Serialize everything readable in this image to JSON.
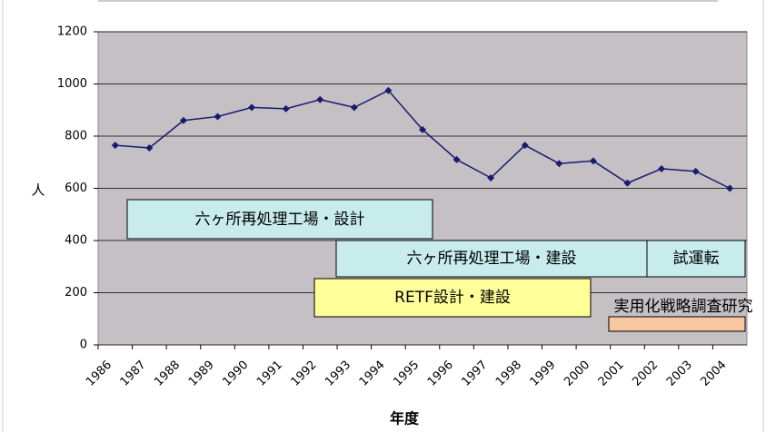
{
  "chart_data": {
    "type": "line",
    "ylabel": "人",
    "xlabel": "年度",
    "categories": [
      "1986",
      "1987",
      "1988",
      "1989",
      "1990",
      "1991",
      "1992",
      "1993",
      "1994",
      "1995",
      "1996",
      "1997",
      "1998",
      "1999",
      "2000",
      "2001",
      "2002",
      "2003",
      "2004"
    ],
    "series": [
      {
        "color": "#1a1a70",
        "values": [
          765,
          755,
          860,
          875,
          910,
          905,
          940,
          910,
          975,
          825,
          710,
          640,
          765,
          695,
          705,
          620,
          675,
          665,
          600
        ]
      }
    ],
    "ylim": [
      0,
      1200
    ],
    "yticks": [
      0,
      200,
      400,
      600,
      800,
      1000,
      1200
    ],
    "grid": true,
    "annotations": [
      "六ヶ所再処理工場・設計",
      "六ヶ所再処理工場・建設",
      "試運転",
      "RETF設計・建設",
      "実用化戦略調査研究"
    ]
  }
}
